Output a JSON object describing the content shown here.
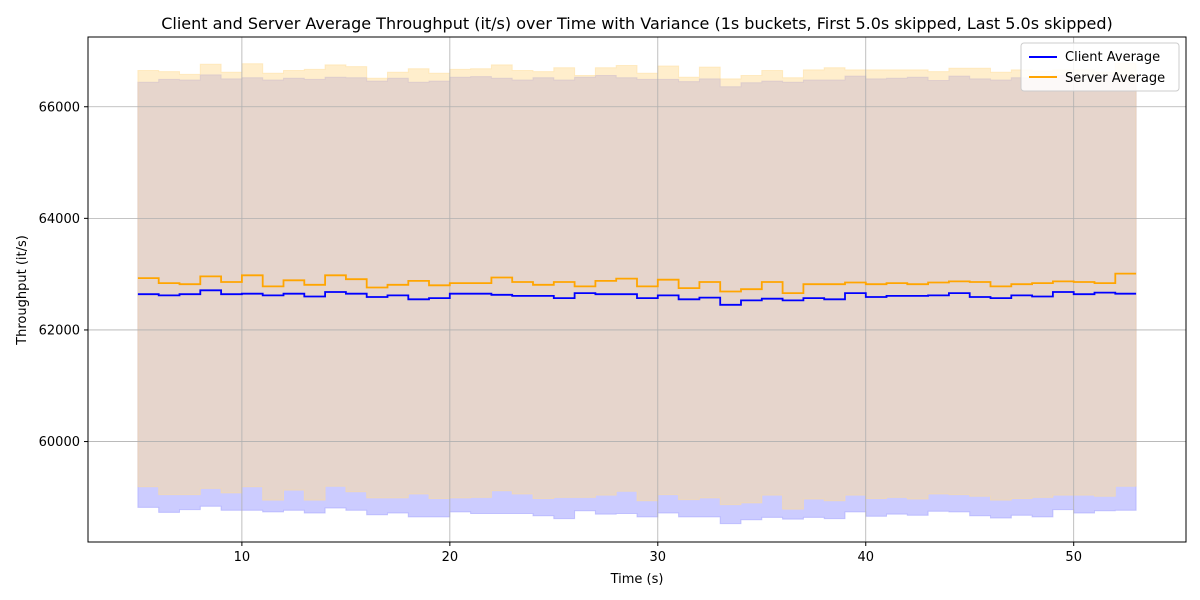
{
  "chart_data": {
    "type": "line",
    "step": "post",
    "title": "Client and Server Average Throughput (it/s) over Time with Variance (1s buckets, First 5.0s skipped, Last 5.0s skipped)",
    "xlabel": "Time (s)",
    "ylabel": "Throughput (it/s)",
    "xlim": [
      2.6,
      55.4
    ],
    "ylim": [
      58200,
      67250
    ],
    "xticks": [
      10,
      20,
      30,
      40,
      50
    ],
    "yticks": [
      60000,
      62000,
      64000,
      66000
    ],
    "grid": true,
    "legend_position": "top-right",
    "x": [
      5,
      6,
      7,
      8,
      9,
      10,
      11,
      12,
      13,
      14,
      15,
      16,
      17,
      18,
      19,
      20,
      21,
      22,
      23,
      24,
      25,
      26,
      27,
      28,
      29,
      30,
      31,
      32,
      33,
      34,
      35,
      36,
      37,
      38,
      39,
      40,
      41,
      42,
      43,
      44,
      45,
      46,
      47,
      48,
      49,
      50,
      51,
      52,
      53
    ],
    "series": [
      {
        "name": "Client Average",
        "color": "#0000ff",
        "band_color": "#9999ff",
        "values": [
          62640,
          62620,
          62640,
          62710,
          62640,
          62650,
          62620,
          62650,
          62600,
          62680,
          62650,
          62590,
          62620,
          62550,
          62570,
          62650,
          62650,
          62630,
          62610,
          62610,
          62570,
          62660,
          62640,
          62640,
          62570,
          62620,
          62550,
          62580,
          62450,
          62530,
          62560,
          62530,
          62570,
          62550,
          62660,
          62590,
          62610,
          62610,
          62620,
          62660,
          62590,
          62570,
          62620,
          62600,
          62680,
          62640,
          62670,
          62650,
          62650
        ],
        "upper": [
          66440,
          66490,
          66480,
          66570,
          66500,
          66520,
          66480,
          66510,
          66490,
          66530,
          66520,
          66460,
          66510,
          66440,
          66460,
          66530,
          66540,
          66510,
          66480,
          66520,
          66480,
          66530,
          66560,
          66520,
          66490,
          66490,
          66450,
          66500,
          66360,
          66430,
          66460,
          66440,
          66480,
          66480,
          66550,
          66500,
          66510,
          66530,
          66470,
          66550,
          66500,
          66480,
          66520,
          66500,
          66560,
          66490,
          66560,
          66520,
          66520
        ],
        "lower": [
          58820,
          58730,
          58780,
          58840,
          58770,
          58770,
          58740,
          58770,
          58720,
          58810,
          58770,
          58690,
          58720,
          58650,
          58650,
          58740,
          58710,
          58710,
          58710,
          58670,
          58620,
          58760,
          58700,
          58710,
          58650,
          58720,
          58650,
          58650,
          58530,
          58600,
          58640,
          58610,
          58640,
          58620,
          58740,
          58660,
          58700,
          58680,
          58750,
          58740,
          58670,
          58630,
          58680,
          58650,
          58780,
          58720,
          58760,
          58770,
          58770
        ]
      },
      {
        "name": "Server Average",
        "color": "#ffa500",
        "band_color": "#ffdd99",
        "values": [
          62930,
          62840,
          62820,
          62960,
          62860,
          62980,
          62780,
          62890,
          62810,
          62980,
          62910,
          62760,
          62810,
          62880,
          62800,
          62840,
          62840,
          62940,
          62860,
          62810,
          62860,
          62780,
          62880,
          62920,
          62780,
          62900,
          62750,
          62860,
          62690,
          62730,
          62860,
          62660,
          62820,
          62820,
          62850,
          62820,
          62840,
          62820,
          62850,
          62870,
          62860,
          62780,
          62820,
          62840,
          62870,
          62860,
          62840,
          63010,
          63010
        ],
        "upper": [
          66650,
          66630,
          66580,
          66760,
          66620,
          66770,
          66600,
          66650,
          66670,
          66750,
          66720,
          66510,
          66620,
          66680,
          66600,
          66670,
          66680,
          66750,
          66650,
          66630,
          66700,
          66560,
          66700,
          66740,
          66600,
          66730,
          66530,
          66710,
          66500,
          66560,
          66650,
          66520,
          66660,
          66700,
          66660,
          66660,
          66660,
          66660,
          66630,
          66690,
          66690,
          66620,
          66660,
          66640,
          66660,
          66660,
          66620,
          66780,
          66780
        ],
        "lower": [
          59190,
          59050,
          59050,
          59160,
          59080,
          59190,
          58950,
          59130,
          58950,
          59200,
          59100,
          58990,
          58990,
          59060,
          58980,
          58990,
          59000,
          59120,
          59060,
          58980,
          59000,
          59000,
          59040,
          59110,
          58940,
          59050,
          58960,
          58990,
          58870,
          58900,
          59040,
          58790,
          58970,
          58940,
          59040,
          58980,
          59000,
          58970,
          59060,
          59050,
          59020,
          58950,
          58980,
          59000,
          59040,
          59040,
          59020,
          59200,
          59200
        ]
      }
    ]
  }
}
